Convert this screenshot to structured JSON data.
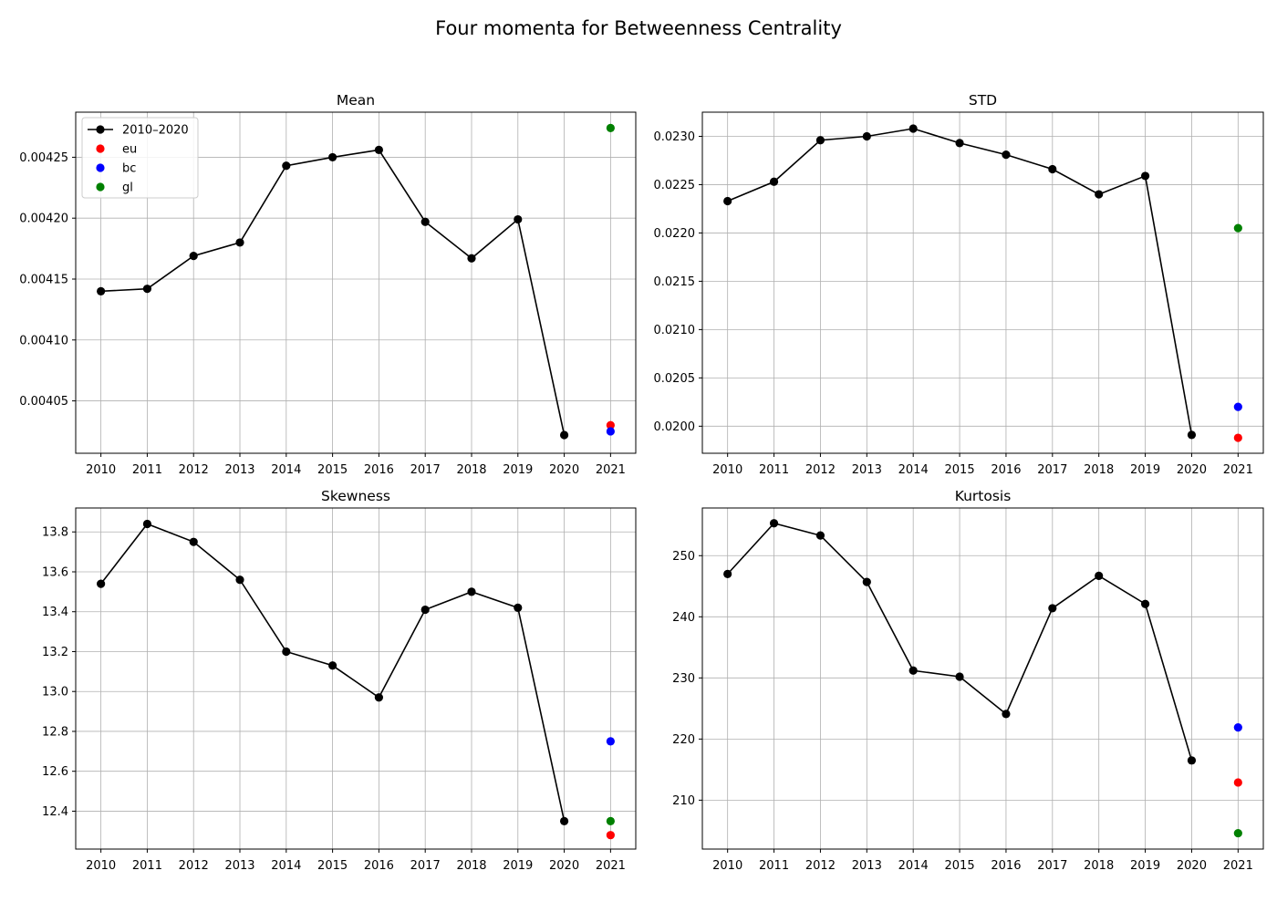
{
  "figure_title": "Four momenta for Betweenness Centrality",
  "chart_data": [
    {
      "type": "line",
      "title": "Mean",
      "xlabel": "",
      "ylabel": "",
      "categories": [
        "2010",
        "2011",
        "2012",
        "2013",
        "2014",
        "2015",
        "2016",
        "2017",
        "2018",
        "2019",
        "2020",
        "2021"
      ],
      "ylim": [
        0.004007,
        0.004287
      ],
      "yticks": [
        0.00405,
        0.0041,
        0.00415,
        0.0042,
        0.00425
      ],
      "ytick_labels": [
        "0.00405",
        "0.00410",
        "0.00415",
        "0.00420",
        "0.00425"
      ],
      "grid": true,
      "legend_position": "top-left",
      "series": [
        {
          "name": "2010–2020",
          "color": "#000000",
          "marker": "circle",
          "line": true,
          "x": [
            "2010",
            "2011",
            "2012",
            "2013",
            "2014",
            "2015",
            "2016",
            "2017",
            "2018",
            "2019",
            "2020"
          ],
          "values": [
            0.00414,
            0.004142,
            0.004169,
            0.00418,
            0.004243,
            0.00425,
            0.004256,
            0.004197,
            0.004167,
            0.004199,
            0.004022
          ]
        },
        {
          "name": "eu",
          "color": "#ff0000",
          "marker": "circle",
          "line": false,
          "x": [
            "2021"
          ],
          "values": [
            0.00403
          ]
        },
        {
          "name": "bc",
          "color": "#0000ff",
          "marker": "circle",
          "line": false,
          "x": [
            "2021"
          ],
          "values": [
            0.004025
          ]
        },
        {
          "name": "gl",
          "color": "#008000",
          "marker": "circle",
          "line": false,
          "x": [
            "2021"
          ],
          "values": [
            0.004274
          ]
        }
      ]
    },
    {
      "type": "line",
      "title": "STD",
      "xlabel": "",
      "ylabel": "",
      "categories": [
        "2010",
        "2011",
        "2012",
        "2013",
        "2014",
        "2015",
        "2016",
        "2017",
        "2018",
        "2019",
        "2020",
        "2021"
      ],
      "ylim": [
        0.01972,
        0.02325
      ],
      "yticks": [
        0.02,
        0.0205,
        0.021,
        0.0215,
        0.022,
        0.0225,
        0.023
      ],
      "ytick_labels": [
        "0.0200",
        "0.0205",
        "0.0210",
        "0.0215",
        "0.0220",
        "0.0225",
        "0.0230"
      ],
      "grid": true,
      "series": [
        {
          "name": "2010–2020",
          "color": "#000000",
          "marker": "circle",
          "line": true,
          "x": [
            "2010",
            "2011",
            "2012",
            "2013",
            "2014",
            "2015",
            "2016",
            "2017",
            "2018",
            "2019",
            "2020"
          ],
          "values": [
            0.02233,
            0.02253,
            0.02296,
            0.023,
            0.02308,
            0.02293,
            0.02281,
            0.02266,
            0.0224,
            0.02259,
            0.01991
          ]
        },
        {
          "name": "eu",
          "color": "#ff0000",
          "marker": "circle",
          "line": false,
          "x": [
            "2021"
          ],
          "values": [
            0.01988
          ]
        },
        {
          "name": "bc",
          "color": "#0000ff",
          "marker": "circle",
          "line": false,
          "x": [
            "2021"
          ],
          "values": [
            0.0202
          ]
        },
        {
          "name": "gl",
          "color": "#008000",
          "marker": "circle",
          "line": false,
          "x": [
            "2021"
          ],
          "values": [
            0.02205
          ]
        }
      ]
    },
    {
      "type": "line",
      "title": "Skewness",
      "xlabel": "",
      "ylabel": "",
      "categories": [
        "2010",
        "2011",
        "2012",
        "2013",
        "2014",
        "2015",
        "2016",
        "2017",
        "2018",
        "2019",
        "2020",
        "2021"
      ],
      "ylim": [
        12.21,
        13.92
      ],
      "yticks": [
        12.4,
        12.6,
        12.8,
        13.0,
        13.2,
        13.4,
        13.6,
        13.8
      ],
      "ytick_labels": [
        "12.4",
        "12.6",
        "12.8",
        "13.0",
        "13.2",
        "13.4",
        "13.6",
        "13.8"
      ],
      "grid": true,
      "series": [
        {
          "name": "2010–2020",
          "color": "#000000",
          "marker": "circle",
          "line": true,
          "x": [
            "2010",
            "2011",
            "2012",
            "2013",
            "2014",
            "2015",
            "2016",
            "2017",
            "2018",
            "2019",
            "2020"
          ],
          "values": [
            13.54,
            13.84,
            13.75,
            13.56,
            13.2,
            13.13,
            12.97,
            13.41,
            13.5,
            13.42,
            12.35
          ]
        },
        {
          "name": "eu",
          "color": "#ff0000",
          "marker": "circle",
          "line": false,
          "x": [
            "2021"
          ],
          "values": [
            12.28
          ]
        },
        {
          "name": "bc",
          "color": "#0000ff",
          "marker": "circle",
          "line": false,
          "x": [
            "2021"
          ],
          "values": [
            12.75
          ]
        },
        {
          "name": "gl",
          "color": "#008000",
          "marker": "circle",
          "line": false,
          "x": [
            "2021"
          ],
          "values": [
            12.35
          ]
        }
      ]
    },
    {
      "type": "line",
      "title": "Kurtosis",
      "xlabel": "",
      "ylabel": "",
      "categories": [
        "2010",
        "2011",
        "2012",
        "2013",
        "2014",
        "2015",
        "2016",
        "2017",
        "2018",
        "2019",
        "2020",
        "2021"
      ],
      "ylim": [
        202.0,
        257.8
      ],
      "yticks": [
        210,
        220,
        230,
        240,
        250
      ],
      "ytick_labels": [
        "210",
        "220",
        "230",
        "240",
        "250"
      ],
      "grid": true,
      "series": [
        {
          "name": "2010–2020",
          "color": "#000000",
          "marker": "circle",
          "line": true,
          "x": [
            "2010",
            "2011",
            "2012",
            "2013",
            "2014",
            "2015",
            "2016",
            "2017",
            "2018",
            "2019",
            "2020"
          ],
          "values": [
            247.0,
            255.3,
            253.3,
            245.7,
            231.2,
            230.2,
            224.1,
            241.4,
            246.7,
            242.1,
            216.5
          ]
        },
        {
          "name": "eu",
          "color": "#ff0000",
          "marker": "circle",
          "line": false,
          "x": [
            "2021"
          ],
          "values": [
            212.9
          ]
        },
        {
          "name": "bc",
          "color": "#0000ff",
          "marker": "circle",
          "line": false,
          "x": [
            "2021"
          ],
          "values": [
            221.9
          ]
        },
        {
          "name": "gl",
          "color": "#008000",
          "marker": "circle",
          "line": false,
          "x": [
            "2021"
          ],
          "values": [
            204.6
          ]
        }
      ]
    }
  ]
}
